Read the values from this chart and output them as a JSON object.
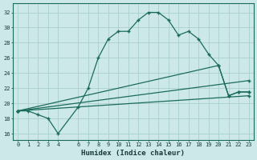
{
  "xlabel": "Humidex (Indice chaleur)",
  "bg_color": "#cce8e8",
  "grid_color": "#aacfcf",
  "line_color": "#1a6b5a",
  "x_ticks": [
    0,
    1,
    2,
    3,
    4,
    6,
    7,
    8,
    9,
    10,
    11,
    12,
    13,
    14,
    15,
    16,
    17,
    18,
    19,
    20,
    21,
    22,
    23
  ],
  "x_tick_labels": [
    "0",
    "1",
    "2",
    "3",
    "4",
    "6",
    "7",
    "8",
    "9",
    "10",
    "11",
    "12",
    "13",
    "14",
    "15",
    "16",
    "17",
    "18",
    "19",
    "20",
    "21",
    "22",
    "23"
  ],
  "y_ticks": [
    16,
    18,
    20,
    22,
    24,
    26,
    28,
    30,
    32
  ],
  "ylim": [
    15.2,
    33.2
  ],
  "xlim": [
    -0.5,
    23.5
  ],
  "line1_x": [
    0,
    1,
    2,
    3,
    4,
    6,
    7,
    8,
    9,
    10,
    11,
    12,
    13,
    14,
    15,
    16,
    17,
    18,
    19,
    20,
    21,
    22,
    23
  ],
  "line1_y": [
    19.0,
    19.0,
    18.5,
    18.0,
    16.0,
    19.5,
    22.0,
    26.0,
    28.5,
    29.5,
    29.5,
    31.0,
    32.0,
    32.0,
    31.0,
    29.0,
    29.5,
    28.5,
    26.5,
    25.0,
    21.0,
    21.5,
    21.5
  ],
  "line2_x": [
    0,
    20,
    21,
    22,
    23
  ],
  "line2_y": [
    19.0,
    25.0,
    21.0,
    21.5,
    21.5
  ],
  "line3_x": [
    0,
    23
  ],
  "line3_y": [
    19.0,
    23.0
  ],
  "line4_x": [
    0,
    23
  ],
  "line4_y": [
    19.0,
    21.0
  ]
}
